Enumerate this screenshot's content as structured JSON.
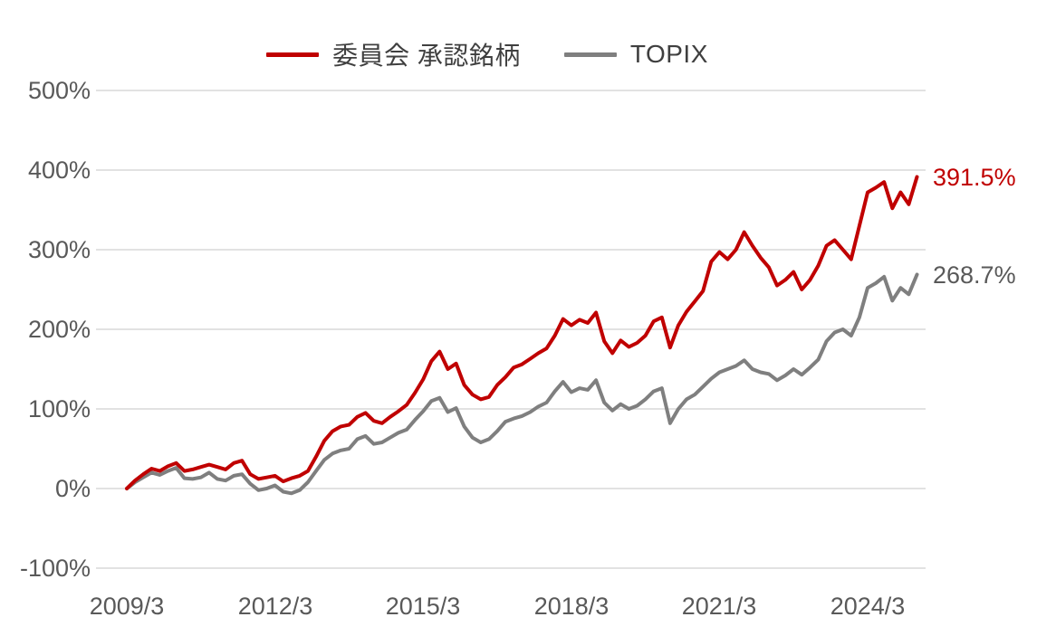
{
  "chart_data": {
    "type": "line",
    "title": "",
    "x_unit": "months since 2009/3",
    "x_step_months": 2,
    "x_tick_labels": [
      "2009/3",
      "2012/3",
      "2015/3",
      "2018/3",
      "2021/3",
      "2024/3"
    ],
    "x_tick_month_offsets": [
      0,
      36,
      72,
      108,
      144,
      180
    ],
    "y_ticks": [
      "500%",
      "400%",
      "300%",
      "200%",
      "100%",
      "0%",
      "-100%"
    ],
    "y_tick_values": [
      500,
      400,
      300,
      200,
      100,
      0,
      -100
    ],
    "ylim": [
      -100,
      500
    ],
    "grid": true,
    "grid_color": "#d9d9d9",
    "axis_text_color": "#595959",
    "legend_position": "top",
    "series": [
      {
        "name": "委員会 承認銘柄",
        "color": "#c00000",
        "end_label": "391.5%",
        "end_label_color": "#c00000",
        "values": [
          0,
          10,
          18,
          25,
          22,
          28,
          32,
          22,
          24,
          27,
          30,
          27,
          24,
          32,
          35,
          18,
          12,
          14,
          16,
          9,
          13,
          16,
          22,
          40,
          60,
          72,
          78,
          80,
          90,
          95,
          85,
          82,
          90,
          97,
          105,
          120,
          137,
          160,
          172,
          150,
          157,
          130,
          118,
          112,
          115,
          130,
          140,
          152,
          156,
          163,
          170,
          176,
          192,
          213,
          205,
          212,
          208,
          221,
          185,
          170,
          186,
          178,
          183,
          192,
          210,
          215,
          177,
          205,
          222,
          235,
          248,
          285,
          297,
          288,
          300,
          322,
          305,
          290,
          278,
          255,
          262,
          272,
          250,
          262,
          280,
          305,
          312,
          300,
          288,
          330,
          372,
          378,
          385,
          352,
          372,
          357,
          391.5
        ]
      },
      {
        "name": "TOPIX",
        "color": "#7f7f7f",
        "end_label": "268.7%",
        "end_label_color": "#595959",
        "values": [
          0,
          8,
          14,
          20,
          17,
          22,
          26,
          13,
          12,
          14,
          20,
          12,
          10,
          16,
          18,
          6,
          -2,
          0,
          4,
          -4,
          -6,
          -2,
          8,
          22,
          36,
          44,
          48,
          50,
          62,
          66,
          56,
          58,
          64,
          70,
          74,
          86,
          97,
          110,
          114,
          96,
          101,
          78,
          64,
          58,
          62,
          72,
          84,
          88,
          91,
          96,
          103,
          108,
          122,
          134,
          121,
          126,
          124,
          136,
          108,
          98,
          106,
          100,
          104,
          112,
          122,
          126,
          82,
          100,
          112,
          118,
          128,
          138,
          146,
          150,
          154,
          161,
          150,
          146,
          144,
          136,
          142,
          150,
          143,
          152,
          162,
          185,
          196,
          200,
          192,
          215,
          252,
          258,
          266,
          236,
          252,
          244,
          268.7
        ]
      }
    ]
  }
}
